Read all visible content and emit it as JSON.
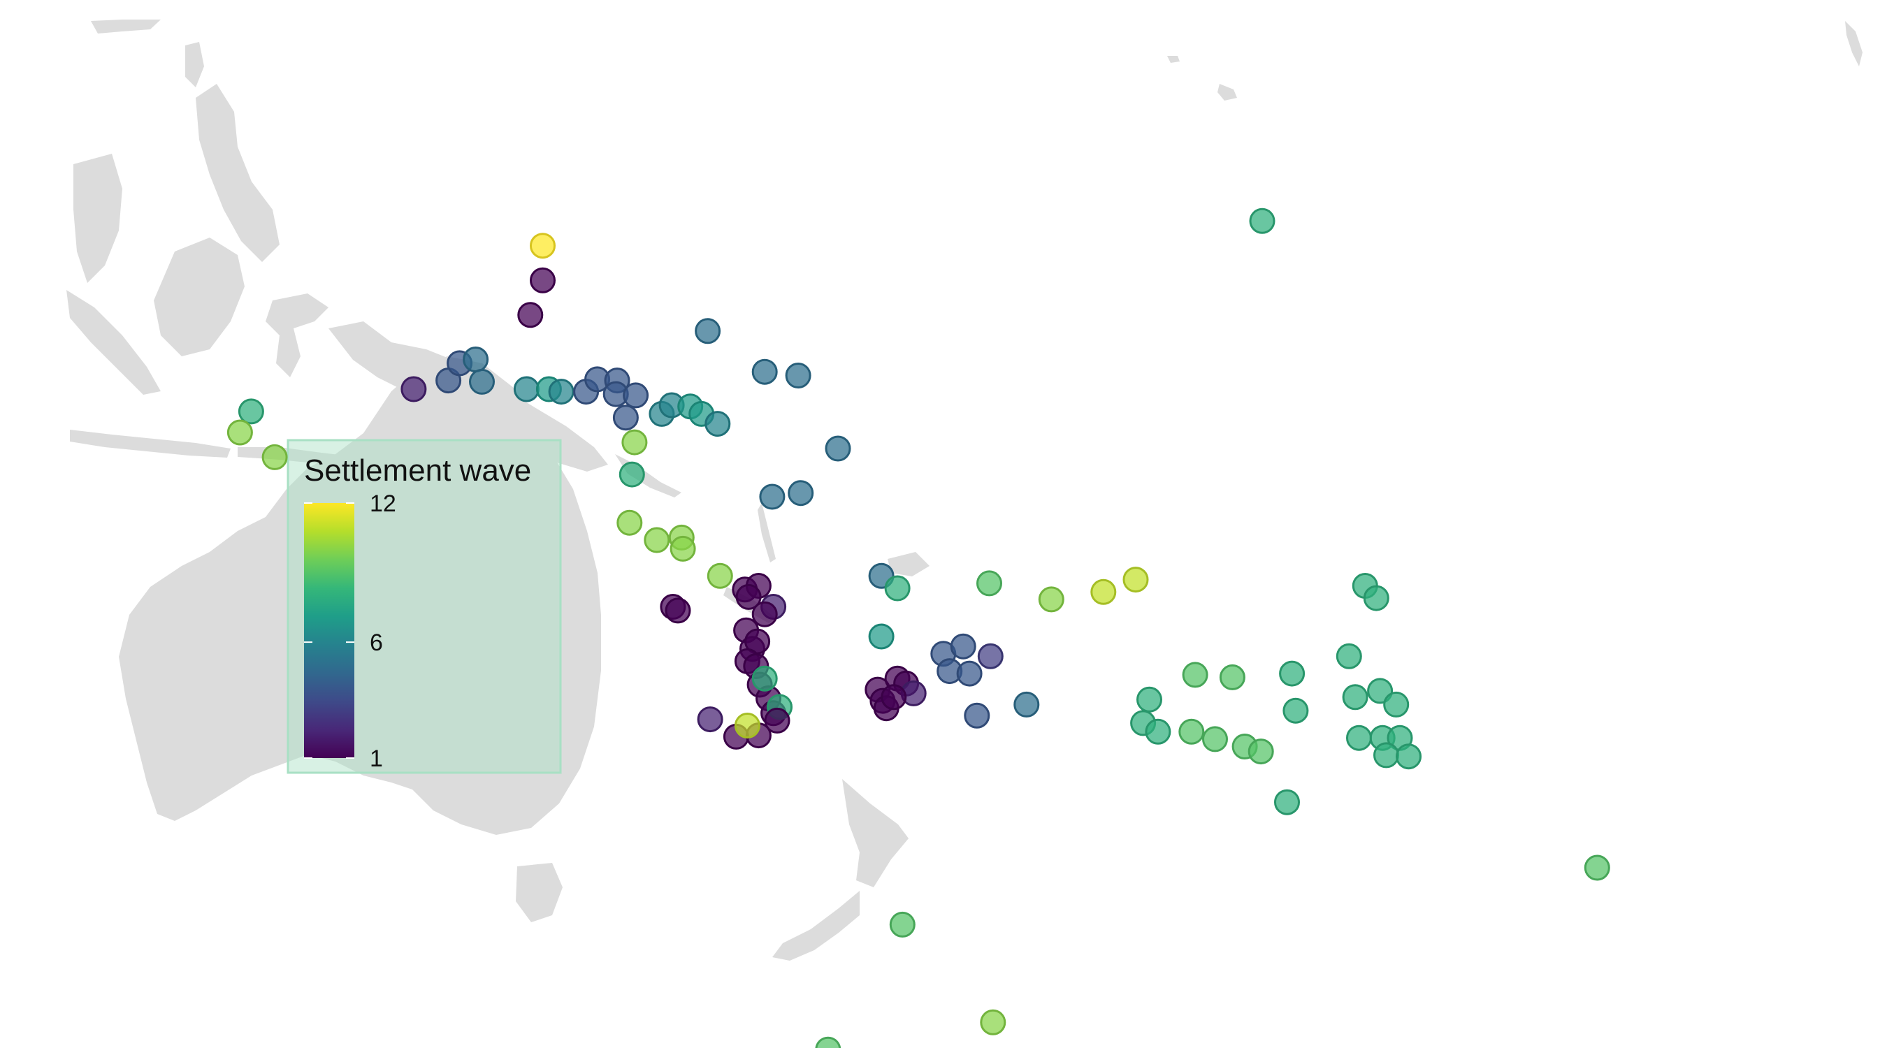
{
  "legend": {
    "title": "Settlement wave",
    "min": 1,
    "max": 12,
    "ticks": [
      12,
      6,
      1
    ],
    "background": "#a8e0c4",
    "colormap": "viridis"
  },
  "colors": {
    "land": "#dcdcdc",
    "viridis_stops": [
      "#440154",
      "#482878",
      "#3e4a89",
      "#31688e",
      "#26828e",
      "#1f9e89",
      "#35b779",
      "#6ece58",
      "#b5de2b",
      "#fde725"
    ]
  },
  "sites": [
    {
      "lon": 145.0,
      "lat": 19.0,
      "wave": 12
    },
    {
      "lon": 145.0,
      "lat": 16.2,
      "wave": 1
    },
    {
      "lon": 144.0,
      "lat": 13.4,
      "wave": 1
    },
    {
      "lon": 134.6,
      "lat": 7.4,
      "wave": 2
    },
    {
      "lon": 137.4,
      "lat": 8.1,
      "wave": 4
    },
    {
      "lon": 138.3,
      "lat": 9.5,
      "wave": 4
    },
    {
      "lon": 139.6,
      "lat": 9.8,
      "wave": 5
    },
    {
      "lon": 140.1,
      "lat": 8.0,
      "wave": 5
    },
    {
      "lon": 143.7,
      "lat": 7.4,
      "wave": 6
    },
    {
      "lon": 145.5,
      "lat": 7.4,
      "wave": 7
    },
    {
      "lon": 146.5,
      "lat": 7.2,
      "wave": 6
    },
    {
      "lon": 148.5,
      "lat": 7.2,
      "wave": 4
    },
    {
      "lon": 149.4,
      "lat": 8.2,
      "wave": 4
    },
    {
      "lon": 151.0,
      "lat": 8.1,
      "wave": 4
    },
    {
      "lon": 150.9,
      "lat": 7.0,
      "wave": 4
    },
    {
      "lon": 152.5,
      "lat": 6.9,
      "wave": 4
    },
    {
      "lon": 151.7,
      "lat": 5.1,
      "wave": 4
    },
    {
      "lon": 154.6,
      "lat": 5.4,
      "wave": 6
    },
    {
      "lon": 155.4,
      "lat": 6.1,
      "wave": 6
    },
    {
      "lon": 156.9,
      "lat": 6.0,
      "wave": 7
    },
    {
      "lon": 157.8,
      "lat": 5.4,
      "wave": 7
    },
    {
      "lon": 159.1,
      "lat": 4.6,
      "wave": 6
    },
    {
      "lon": 158.3,
      "lat": 12.1,
      "wave": 5
    },
    {
      "lon": 162.9,
      "lat": 8.8,
      "wave": 5
    },
    {
      "lon": 165.6,
      "lat": 8.5,
      "wave": 5
    },
    {
      "lon": 168.8,
      "lat": 2.6,
      "wave": 5
    },
    {
      "lon": 165.8,
      "lat": -1.0,
      "wave": 5
    },
    {
      "lon": 163.5,
      "lat": -1.3,
      "wave": 5
    },
    {
      "lon": 152.4,
      "lat": 3.1,
      "wave": 10
    },
    {
      "lon": 152.2,
      "lat": 0.5,
      "wave": 8
    },
    {
      "lon": 152.0,
      "lat": -3.4,
      "wave": 10
    },
    {
      "lon": 154.2,
      "lat": -4.8,
      "wave": 10
    },
    {
      "lon": 156.2,
      "lat": -4.6,
      "wave": 10
    },
    {
      "lon": 156.3,
      "lat": -5.5,
      "wave": 10
    },
    {
      "lon": 159.3,
      "lat": -7.7,
      "wave": 10
    },
    {
      "lon": 121.5,
      "lat": 5.6,
      "wave": 8
    },
    {
      "lon": 120.6,
      "lat": 3.9,
      "wave": 10
    },
    {
      "lon": 123.4,
      "lat": 1.9,
      "wave": 10
    },
    {
      "lon": 155.5,
      "lat": -10.2,
      "wave": 1
    },
    {
      "lon": 155.9,
      "lat": -10.5,
      "wave": 1
    },
    {
      "lon": 161.3,
      "lat": -8.8,
      "wave": 1
    },
    {
      "lon": 162.4,
      "lat": -8.5,
      "wave": 1
    },
    {
      "lon": 161.6,
      "lat": -9.4,
      "wave": 1
    },
    {
      "lon": 163.6,
      "lat": -10.2,
      "wave": 2
    },
    {
      "lon": 162.9,
      "lat": -10.8,
      "wave": 1
    },
    {
      "lon": 161.4,
      "lat": -12.1,
      "wave": 1
    },
    {
      "lon": 161.9,
      "lat": -13.6,
      "wave": 1
    },
    {
      "lon": 162.3,
      "lat": -13.0,
      "wave": 1
    },
    {
      "lon": 161.5,
      "lat": -14.6,
      "wave": 1
    },
    {
      "lon": 162.2,
      "lat": -15.0,
      "wave": 1
    },
    {
      "lon": 162.5,
      "lat": -16.5,
      "wave": 1
    },
    {
      "lon": 163.2,
      "lat": -17.6,
      "wave": 1
    },
    {
      "lon": 163.6,
      "lat": -18.8,
      "wave": 1
    },
    {
      "lon": 164.1,
      "lat": -18.3,
      "wave": 8
    },
    {
      "lon": 162.9,
      "lat": -16.0,
      "wave": 8
    },
    {
      "lon": 158.5,
      "lat": -19.3,
      "wave": 2
    },
    {
      "lon": 160.6,
      "lat": -20.7,
      "wave": 1
    },
    {
      "lon": 162.4,
      "lat": -20.6,
      "wave": 1
    },
    {
      "lon": 163.9,
      "lat": -19.4,
      "wave": 1
    },
    {
      "lon": 161.5,
      "lat": -19.8,
      "wave": 11
    },
    {
      "lon": 172.3,
      "lat": -7.7,
      "wave": 5
    },
    {
      "lon": 173.6,
      "lat": -8.7,
      "wave": 8
    },
    {
      "lon": 172.3,
      "lat": -12.6,
      "wave": 7
    },
    {
      "lon": 177.3,
      "lat": -14.0,
      "wave": 4
    },
    {
      "lon": 178.9,
      "lat": -13.4,
      "wave": 4
    },
    {
      "lon": 177.8,
      "lat": -15.4,
      "wave": 4
    },
    {
      "lon": 179.4,
      "lat": -15.6,
      "wave": 4
    },
    {
      "lon": -178.9,
      "lat": -14.2,
      "wave": 3
    },
    {
      "lon": 180.0,
      "lat": -19.0,
      "wave": 4
    },
    {
      "lon": -176.0,
      "lat": -18.1,
      "wave": 5
    },
    {
      "lon": 172.0,
      "lat": -16.9,
      "wave": 1
    },
    {
      "lon": 173.6,
      "lat": -16.0,
      "wave": 1
    },
    {
      "lon": 174.3,
      "lat": -16.4,
      "wave": 1
    },
    {
      "lon": 174.9,
      "lat": -17.2,
      "wave": 2
    },
    {
      "lon": 172.4,
      "lat": -17.8,
      "wave": 1
    },
    {
      "lon": 172.7,
      "lat": -18.4,
      "wave": 1
    },
    {
      "lon": 173.3,
      "lat": -17.5,
      "wave": 1
    },
    {
      "lon": -179.0,
      "lat": -8.3,
      "wave": 9
    },
    {
      "lon": -174.0,
      "lat": -9.6,
      "wave": 10
    },
    {
      "lon": -169.8,
      "lat": -9.0,
      "wave": 11
    },
    {
      "lon": -167.2,
      "lat": -8.0,
      "wave": 11
    },
    {
      "lon": -162.4,
      "lat": -15.7,
      "wave": 9
    },
    {
      "lon": -159.4,
      "lat": -15.9,
      "wave": 9
    },
    {
      "lon": -166.1,
      "lat": -17.7,
      "wave": 8
    },
    {
      "lon": -166.6,
      "lat": -19.6,
      "wave": 8
    },
    {
      "lon": -165.4,
      "lat": -20.3,
      "wave": 8
    },
    {
      "lon": -162.7,
      "lat": -20.3,
      "wave": 9
    },
    {
      "lon": -160.8,
      "lat": -20.9,
      "wave": 9
    },
    {
      "lon": -158.4,
      "lat": -21.5,
      "wave": 9
    },
    {
      "lon": -157.1,
      "lat": -21.9,
      "wave": 9
    },
    {
      "lon": -154.3,
      "lat": -18.6,
      "wave": 8
    },
    {
      "lon": -154.6,
      "lat": -15.6,
      "wave": 8
    },
    {
      "lon": -150.0,
      "lat": -14.2,
      "wave": 8
    },
    {
      "lon": -149.5,
      "lat": -17.5,
      "wave": 8
    },
    {
      "lon": -148.7,
      "lat": -8.5,
      "wave": 8
    },
    {
      "lon": -147.8,
      "lat": -9.5,
      "wave": 8
    },
    {
      "lon": -147.5,
      "lat": -17.0,
      "wave": 8
    },
    {
      "lon": -146.2,
      "lat": -18.1,
      "wave": 8
    },
    {
      "lon": -149.2,
      "lat": -20.8,
      "wave": 8
    },
    {
      "lon": -147.3,
      "lat": -20.8,
      "wave": 8
    },
    {
      "lon": -145.9,
      "lat": -20.8,
      "wave": 8
    },
    {
      "lon": -147.0,
      "lat": -22.2,
      "wave": 8
    },
    {
      "lon": -145.2,
      "lat": -22.3,
      "wave": 8
    },
    {
      "lon": -155.0,
      "lat": -26.0,
      "wave": 8
    },
    {
      "lon": -130.0,
      "lat": -31.3,
      "wave": 9
    },
    {
      "lon": -157.0,
      "lat": 21.0,
      "wave": 8
    },
    {
      "lon": 174.0,
      "lat": -35.9,
      "wave": 9
    },
    {
      "lon": 168.0,
      "lat": -46.0,
      "wave": 9
    },
    {
      "lon": 181.3,
      "lat": -43.8,
      "wave": 10
    }
  ]
}
